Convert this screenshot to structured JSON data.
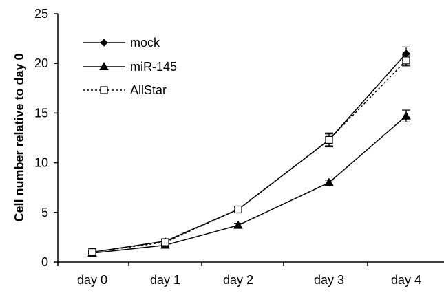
{
  "chart_data": {
    "type": "line",
    "title": "",
    "xlabel": "",
    "ylabel": "Cell number relative to day 0",
    "categories": [
      "day 0",
      "day 1",
      "day 2",
      "day 3",
      "day 4"
    ],
    "yticks": [
      0,
      5,
      10,
      15,
      20,
      25
    ],
    "ylim": [
      0,
      25
    ],
    "grid": false,
    "legend_position": "top-left",
    "series": [
      {
        "name": "mock",
        "values": [
          1.0,
          2.1,
          5.3,
          12.3,
          21.0
        ],
        "errors": [
          0.15,
          0.2,
          0.25,
          0.6,
          0.65
        ],
        "marker": "diamond",
        "line": "solid",
        "color": "#000000"
      },
      {
        "name": "miR-145",
        "values": [
          0.9,
          1.7,
          3.7,
          8.0,
          14.7
        ],
        "errors": [
          0.1,
          0.15,
          0.2,
          0.25,
          0.6
        ],
        "marker": "triangle",
        "line": "solid",
        "color": "#000000"
      },
      {
        "name": "AllStar",
        "values": [
          1.0,
          2.0,
          5.3,
          12.3,
          20.3
        ],
        "errors": [
          0.1,
          0.25,
          0.25,
          0.7,
          0.55
        ],
        "marker": "open-square",
        "line": "dotted",
        "color": "#000000"
      }
    ]
  }
}
